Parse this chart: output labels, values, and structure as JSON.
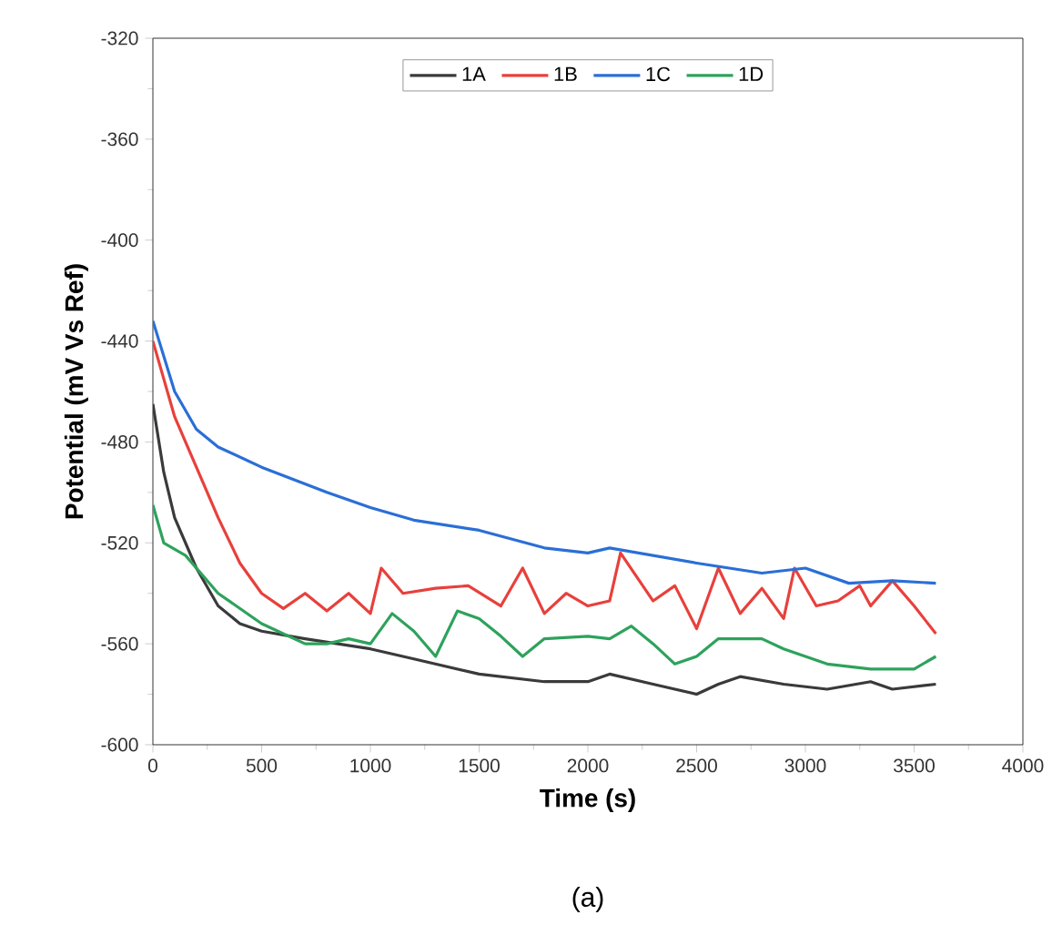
{
  "chart_data": {
    "type": "line",
    "xlabel": "Time (s)",
    "ylabel": "Potential (mV Vs Ref)",
    "annotations": [
      "(a)"
    ],
    "xlim": [
      0,
      4000
    ],
    "ylim": [
      -600,
      -320
    ],
    "xticks": [
      0,
      500,
      1000,
      1500,
      2000,
      2500,
      3000,
      3500,
      4000
    ],
    "yticks": [
      -600,
      -560,
      -520,
      -480,
      -440,
      -400,
      -360,
      -320
    ],
    "legend": "top",
    "grid": false,
    "marker": "none",
    "line_style": "solid",
    "series": [
      {
        "name": "1A",
        "color": "#3a3a3a",
        "x": [
          0,
          50,
          100,
          200,
          300,
          400,
          500,
          700,
          1000,
          1200,
          1500,
          1800,
          2000,
          2100,
          2300,
          2500,
          2600,
          2700,
          2900,
          3100,
          3300,
          3400,
          3600
        ],
        "values": [
          -465,
          -492,
          -510,
          -530,
          -545,
          -552,
          -555,
          -558,
          -562,
          -566,
          -572,
          -575,
          -575,
          -572,
          -576,
          -580,
          -576,
          -573,
          -576,
          -578,
          -575,
          -578,
          -576
        ]
      },
      {
        "name": "1B",
        "color": "#e8403c",
        "x": [
          0,
          100,
          200,
          300,
          400,
          500,
          600,
          700,
          800,
          900,
          1000,
          1050,
          1150,
          1300,
          1450,
          1600,
          1700,
          1800,
          1900,
          2000,
          2100,
          2150,
          2300,
          2400,
          2500,
          2600,
          2700,
          2800,
          2900,
          2950,
          3050,
          3150,
          3250,
          3300,
          3400,
          3500,
          3600
        ],
        "values": [
          -440,
          -470,
          -490,
          -510,
          -528,
          -540,
          -546,
          -540,
          -547,
          -540,
          -548,
          -530,
          -540,
          -538,
          -537,
          -545,
          -530,
          -548,
          -540,
          -545,
          -543,
          -524,
          -543,
          -537,
          -554,
          -530,
          -548,
          -538,
          -550,
          -530,
          -545,
          -543,
          -537,
          -545,
          -535,
          -545,
          -556
        ]
      },
      {
        "name": "1C",
        "color": "#2a6fd6",
        "x": [
          0,
          100,
          200,
          300,
          500,
          800,
          1000,
          1200,
          1500,
          1800,
          2000,
          2100,
          2500,
          2800,
          3000,
          3200,
          3400,
          3600
        ],
        "values": [
          -432,
          -460,
          -475,
          -482,
          -490,
          -500,
          -506,
          -511,
          -515,
          -522,
          -524,
          -522,
          -528,
          -532,
          -530,
          -536,
          -535,
          -536
        ]
      },
      {
        "name": "1D",
        "color": "#2ea25c",
        "x": [
          0,
          50,
          150,
          300,
          500,
          700,
          800,
          900,
          1000,
          1100,
          1200,
          1300,
          1400,
          1500,
          1600,
          1700,
          1800,
          2000,
          2100,
          2200,
          2300,
          2400,
          2500,
          2600,
          2800,
          2900,
          3000,
          3100,
          3300,
          3500,
          3600
        ],
        "values": [
          -505,
          -520,
          -525,
          -540,
          -552,
          -560,
          -560,
          -558,
          -560,
          -548,
          -555,
          -565,
          -547,
          -550,
          -557,
          -565,
          -558,
          -557,
          -558,
          -553,
          -560,
          -568,
          -565,
          -558,
          -558,
          -562,
          -565,
          -568,
          -570,
          -570,
          -565
        ]
      }
    ]
  }
}
